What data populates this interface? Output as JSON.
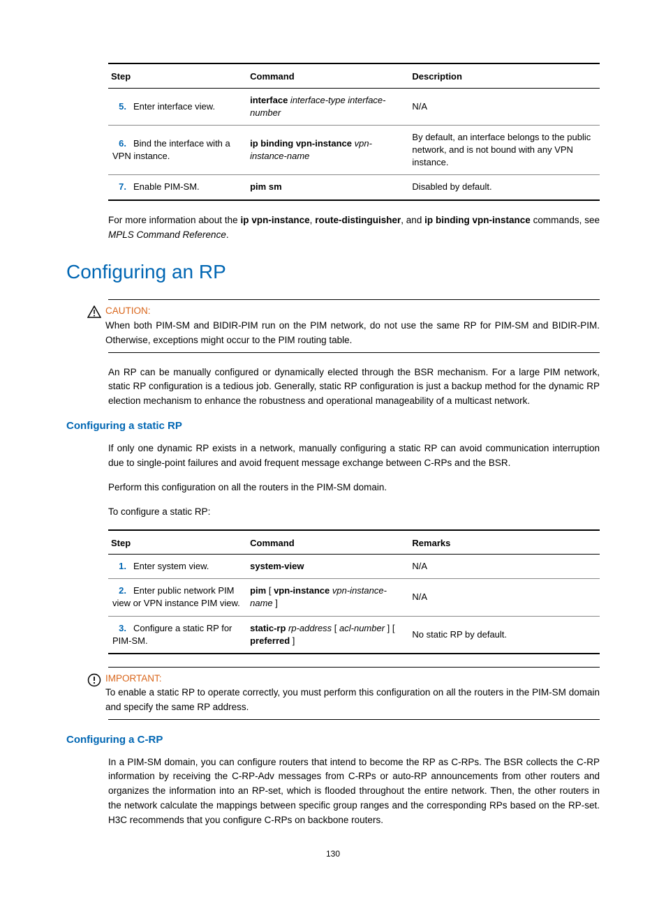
{
  "colors": {
    "accent": "#0066b3",
    "warn": "#d9651a"
  },
  "table1": {
    "headers": [
      "Step",
      "Command",
      "Description"
    ],
    "rows": [
      {
        "num": "5.",
        "step": "Enter interface view.",
        "cmd_bold": "interface",
        "cmd_ital": " interface-type interface-number",
        "desc": "N/A"
      },
      {
        "num": "6.",
        "step": "Bind the interface with a VPN instance.",
        "cmd_bold": "ip binding vpn-instance",
        "cmd_ital": " vpn-instance-name",
        "desc": "By default, an interface belongs to the public network, and is not bound with any VPN instance."
      },
      {
        "num": "7.",
        "step": "Enable PIM-SM.",
        "cmd_bold": "pim sm",
        "cmd_ital": "",
        "desc": "Disabled by default."
      }
    ]
  },
  "para1_a": "For more information about the ",
  "para1_b": "ip vpn-instance",
  "para1_c": ", ",
  "para1_d": "route-distinguisher",
  "para1_e": ", and ",
  "para1_f": "ip binding vpn-instance",
  "para1_g": " commands, see ",
  "para1_h": "MPLS Command Reference",
  "para1_i": ".",
  "h1": "Configuring an RP",
  "caution_label": "CAUTION:",
  "caution_body": "When both PIM-SM and BIDIR-PIM run on the PIM network, do not use the same RP for PIM-SM and BIDIR-PIM. Otherwise, exceptions might occur to the PIM routing table.",
  "para2": "An RP can be manually configured or dynamically elected through the BSR mechanism. For a large PIM network, static RP configuration is a tedious job. Generally, static RP configuration is just a backup method for the dynamic RP election mechanism to enhance the robustness and operational manageability of a multicast network.",
  "h2a": "Configuring a static RP",
  "para3": "If only one dynamic RP exists in a network, manually configuring a static RP can avoid communication interruption due to single-point failures and avoid frequent message exchange between C-RPs and the BSR.",
  "para4": "Perform this configuration on all the routers in the PIM-SM domain.",
  "para5": "To configure a static RP:",
  "table2": {
    "headers": [
      "Step",
      "Command",
      "Remarks"
    ],
    "rows": [
      {
        "num": "1.",
        "step": "Enter system view.",
        "cmd_html": "<span class='bold'>system-view</span>",
        "desc": "N/A"
      },
      {
        "num": "2.",
        "step": "Enter public network PIM view or VPN instance PIM view.",
        "cmd_html": "<span class='bold'>pim</span> [ <span class='bold'>vpn-instance</span> <span class='italic'>vpn-instance-name</span> ]",
        "desc": "N/A"
      },
      {
        "num": "3.",
        "step": "Configure a static RP for PIM-SM.",
        "cmd_html": "<span class='bold'>static-rp</span> <span class='italic'>rp-address</span> [ <span class='italic'>acl-number</span> ] [ <span class='bold'>preferred</span> ]",
        "desc": "No static RP by default."
      }
    ]
  },
  "important_label": "IMPORTANT:",
  "important_body": "To enable a static RP to operate correctly, you must perform this configuration on all the routers in the PIM-SM domain and specify the same RP address.",
  "h2b": "Configuring a C-RP",
  "para6": "In a PIM-SM domain, you can configure routers that intend to become the RP as C-RPs. The BSR collects the C-RP information by receiving the C-RP-Adv messages from C-RPs or auto-RP announcements from other routers and organizes the information into an RP-set, which is flooded throughout the entire network. Then, the other routers in the network calculate the mappings between specific group ranges and the corresponding RPs based on the RP-set. H3C recommends that you configure C-RPs on backbone routers.",
  "page_num": "130"
}
